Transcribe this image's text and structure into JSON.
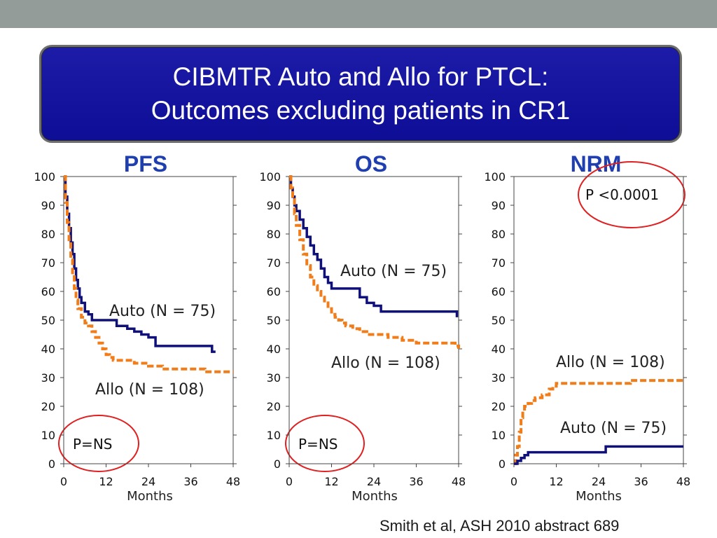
{
  "slide": {
    "title_line1": "CIBMTR Auto and Allo for PTCL:",
    "title_line2": "Outcomes excluding patients in CR1",
    "citation": "Smith et al, ASH 2010 abstract 689"
  },
  "colors": {
    "auto": "#10107a",
    "allo": "#f07d1a",
    "circle": "#e02020",
    "title_bg": "#1414a0"
  },
  "chart_data": [
    {
      "type": "line",
      "title": "PFS",
      "xlabel": "Months",
      "ylabel": "",
      "xlim": [
        0,
        48
      ],
      "ylim": [
        0,
        100
      ],
      "xticks": [
        0,
        12,
        24,
        36,
        48
      ],
      "yticks": [
        0,
        10,
        20,
        30,
        40,
        50,
        60,
        70,
        80,
        90,
        100
      ],
      "series": [
        {
          "name": "Auto (N = 75)",
          "style": "solid",
          "x": [
            0,
            0.5,
            1,
            1.5,
            2,
            2.5,
            3,
            3.5,
            4,
            4.5,
            5,
            6,
            7,
            8,
            9,
            12,
            15,
            17,
            18,
            20,
            22,
            24,
            26,
            28,
            30,
            34,
            38,
            42,
            43
          ],
          "y": [
            100,
            93,
            87,
            82,
            77,
            73,
            68,
            64,
            61,
            58,
            56,
            53,
            52,
            50,
            50,
            50,
            48,
            48,
            47,
            46,
            45,
            44,
            41,
            41,
            41,
            41,
            41,
            39,
            39
          ]
        },
        {
          "name": "Allo (N = 108)",
          "style": "dashed",
          "x": [
            0,
            0.5,
            1,
            1.5,
            2,
            2.5,
            3,
            3.5,
            4,
            5,
            6,
            7,
            8,
            9,
            10,
            11,
            12,
            13,
            14,
            15,
            18,
            20,
            24,
            28,
            36,
            40,
            48
          ],
          "y": [
            100,
            91,
            84,
            78,
            71,
            66,
            61,
            57,
            54,
            51,
            49,
            48,
            46,
            44,
            42,
            40,
            38,
            37,
            36,
            36,
            36,
            35,
            34,
            33,
            33,
            32,
            32
          ]
        }
      ],
      "annotations": [
        "Auto (N = 75)",
        "Allo (N = 108)",
        "P=NS"
      ]
    },
    {
      "type": "line",
      "title": "OS",
      "xlabel": "Months",
      "ylabel": "",
      "xlim": [
        0,
        48
      ],
      "ylim": [
        0,
        100
      ],
      "xticks": [
        0,
        12,
        24,
        36,
        48
      ],
      "yticks": [
        0,
        10,
        20,
        30,
        40,
        50,
        60,
        70,
        80,
        90,
        100
      ],
      "series": [
        {
          "name": "Auto (N = 75)",
          "style": "solid",
          "x": [
            0,
            0.5,
            1,
            1.5,
            2,
            3,
            4,
            5,
            6,
            7,
            8,
            9,
            10,
            11,
            12,
            16,
            18,
            20,
            22,
            24,
            26,
            28,
            32,
            36,
            40,
            47,
            47.5
          ],
          "y": [
            100,
            96,
            93,
            90,
            88,
            85,
            82,
            79,
            76,
            73,
            71,
            68,
            65,
            63,
            61,
            61,
            61,
            58,
            56,
            55,
            53,
            53,
            53,
            53,
            53,
            53,
            51
          ]
        },
        {
          "name": "Allo (N = 108)",
          "style": "dashed",
          "x": [
            0,
            0.5,
            1,
            1.5,
            2,
            3,
            4,
            5,
            6,
            7,
            8,
            9,
            10,
            11,
            12,
            13,
            14,
            15,
            16,
            18,
            20,
            22,
            24,
            28,
            32,
            36,
            40,
            44,
            47,
            48
          ],
          "y": [
            100,
            96,
            92,
            87,
            83,
            78,
            73,
            69,
            65,
            62,
            60,
            58,
            56,
            54,
            52,
            51,
            50,
            49,
            48,
            47,
            46,
            45,
            45,
            44,
            43,
            42,
            42,
            42,
            41,
            40
          ]
        }
      ],
      "annotations": [
        "Auto (N = 75)",
        "Allo (N = 108)",
        "P=NS"
      ]
    },
    {
      "type": "line",
      "title": "NRM",
      "xlabel": "Months",
      "ylabel": "",
      "xlim": [
        0,
        48
      ],
      "ylim": [
        0,
        100
      ],
      "xticks": [
        0,
        12,
        24,
        36,
        48
      ],
      "yticks": [
        0,
        10,
        20,
        30,
        40,
        50,
        60,
        70,
        80,
        90,
        100
      ],
      "series": [
        {
          "name": "Allo (N = 108)",
          "style": "dashed",
          "x": [
            0,
            0.5,
            1,
            1.5,
            2,
            2.5,
            3,
            4,
            5,
            6,
            8,
            10,
            11,
            12,
            14,
            20,
            24,
            30,
            33,
            36,
            44,
            48
          ],
          "y": [
            0,
            3,
            6,
            11,
            16,
            19,
            20,
            21,
            22,
            23,
            24,
            26,
            27,
            28,
            28,
            28,
            28,
            28,
            29,
            29,
            29,
            29
          ]
        },
        {
          "name": "Auto (N = 75)",
          "style": "solid",
          "x": [
            0,
            1,
            2,
            3,
            4,
            5,
            10,
            20,
            25,
            26,
            30,
            40,
            48
          ],
          "y": [
            0,
            1,
            2,
            3,
            4,
            4,
            4,
            4,
            4,
            6,
            6,
            6,
            6
          ]
        }
      ],
      "annotations": [
        "Allo (N = 108)",
        "Auto (N = 75)",
        "P <0.0001"
      ]
    }
  ]
}
